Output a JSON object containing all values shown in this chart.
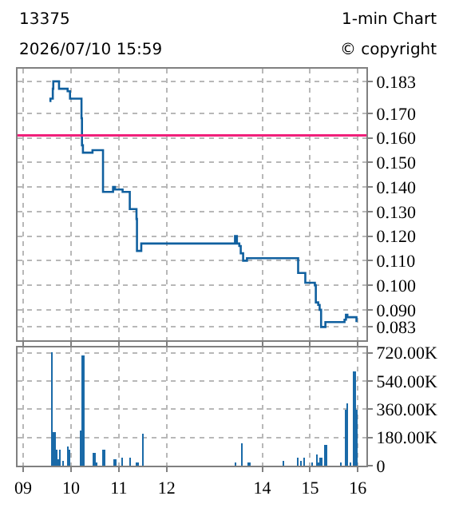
{
  "chart_data": [
    {
      "type": "step",
      "title": "13375",
      "annotations": [
        "1-min Chart",
        "2026/07/10 15:59",
        "© copyright"
      ],
      "series": [
        {
          "color": "#10609f",
          "x": [
            9.55,
            9.57,
            9.62,
            9.63,
            9.75,
            9.93,
            9.98,
            10.22,
            10.23,
            10.25,
            10.45,
            10.67,
            10.88,
            10.92,
            11.08,
            11.23,
            11.37,
            11.38,
            11.47,
            13.43,
            13.47,
            13.52,
            13.55,
            13.6,
            13.68,
            14.75,
            14.9,
            15.1,
            15.12,
            15.17,
            15.2,
            15.23,
            15.32,
            15.72,
            15.75,
            15.78,
            15.97
          ],
          "values": [
            0.175,
            0.176,
            0.18,
            0.183,
            0.18,
            0.179,
            0.176,
            0.168,
            0.157,
            0.154,
            0.155,
            0.138,
            0.14,
            0.139,
            0.138,
            0.131,
            0.127,
            0.114,
            0.117,
            0.12,
            0.117,
            0.116,
            0.113,
            0.11,
            0.111,
            0.105,
            0.101,
            0.1,
            0.093,
            0.092,
            0.09,
            0.083,
            0.085,
            0.086,
            0.088,
            0.087,
            0.085
          ]
        }
      ],
      "xlim": [
        8.88,
        16.18
      ],
      "ylim": [
        0.0777,
        0.1883
      ],
      "yticks": [
        {
          "value": 0.083,
          "label": "0.083"
        },
        {
          "value": 0.09,
          "label": "0.090"
        },
        {
          "value": 0.1,
          "label": "0.100"
        },
        {
          "value": 0.11,
          "label": "0.110"
        },
        {
          "value": 0.12,
          "label": "0.120"
        },
        {
          "value": 0.13,
          "label": "0.130"
        },
        {
          "value": 0.14,
          "label": "0.140"
        },
        {
          "value": 0.15,
          "label": "0.150"
        },
        {
          "value": 0.16,
          "label": "0.160"
        },
        {
          "value": 0.17,
          "label": "0.170"
        },
        {
          "value": 0.183,
          "label": "0.183"
        }
      ],
      "xticks": [
        {
          "value": 9,
          "label": null
        },
        {
          "value": 10,
          "label": null
        },
        {
          "value": 11,
          "label": null
        },
        {
          "value": 12,
          "label": null
        },
        {
          "value": 14,
          "label": null
        },
        {
          "value": 15,
          "label": null
        },
        {
          "value": 16,
          "label": null
        }
      ],
      "ref_lines": [
        {
          "axis": "y",
          "value": 0.161,
          "color": "#f0207a"
        }
      ],
      "grid": true,
      "tick_labels": "y"
    },
    {
      "type": "bar",
      "series": [
        {
          "color": "#1a6aa8",
          "x": [
            9.6,
            9.65,
            9.68,
            9.72,
            9.77,
            9.83,
            9.92,
            9.97,
            10.21,
            10.25,
            10.48,
            10.52,
            10.68,
            10.92,
            11.07,
            11.23,
            11.38,
            11.5,
            13.43,
            13.57,
            13.72,
            14.43,
            14.75,
            14.8,
            14.88,
            15.05,
            15.13,
            15.18,
            15.22,
            15.32,
            15.63,
            15.75,
            15.78,
            15.83,
            15.92,
            15.98
          ],
          "values": [
            720000,
            210000,
            100000,
            40000,
            100000,
            30000,
            120000,
            100000,
            220000,
            700000,
            80000,
            10000,
            100000,
            40000,
            50000,
            50000,
            10000,
            200000,
            20000,
            140000,
            10000,
            30000,
            50000,
            30000,
            50000,
            20000,
            70000,
            20000,
            50000,
            130000,
            10000,
            350000,
            400000,
            10000,
            600000,
            350000
          ]
        }
      ],
      "xlim": [
        8.88,
        16.18
      ],
      "ylim": [
        0,
        752000
      ],
      "yticks": [
        {
          "value": 0,
          "label": "0"
        },
        {
          "value": 180000,
          "label": "180.00K"
        },
        {
          "value": 360000,
          "label": "360.00K"
        },
        {
          "value": 540000,
          "label": "540.00K"
        },
        {
          "value": 720000,
          "label": "720.00K"
        }
      ],
      "xticks": [
        {
          "value": 9,
          "label": "09"
        },
        10,
        11,
        12,
        14,
        15,
        16
      ],
      "grid": true
    }
  ]
}
